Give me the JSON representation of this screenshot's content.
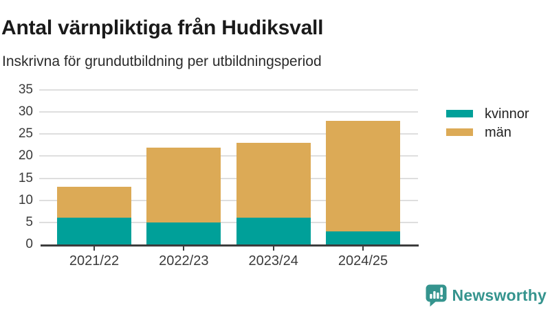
{
  "chart_data": {
    "type": "bar",
    "stacked": true,
    "title": "Antal värnpliktiga från Hudiksvall",
    "subtitle": "Inskrivna för grundutbildning per utbildningsperiod",
    "categories": [
      "2021/22",
      "2022/23",
      "2023/24",
      "2024/25"
    ],
    "series": [
      {
        "name": "kvinnor",
        "color": "#00A099",
        "values": [
          6,
          5,
          6,
          3
        ]
      },
      {
        "name": "män",
        "color": "#DCAA56",
        "values": [
          7,
          17,
          17,
          25
        ]
      }
    ],
    "xlabel": "",
    "ylabel": "",
    "ylim": [
      0,
      35
    ],
    "yticks": [
      0,
      5,
      10,
      15,
      20,
      25,
      30,
      35
    ],
    "grid": true,
    "legend_position": "right-top",
    "colors": {
      "grid": "#dedede",
      "axis": "#3c3c3c",
      "tick_label": "#3a3a3a"
    }
  },
  "branding": {
    "logo_text": "Newsworthy",
    "color": "#35948E"
  }
}
